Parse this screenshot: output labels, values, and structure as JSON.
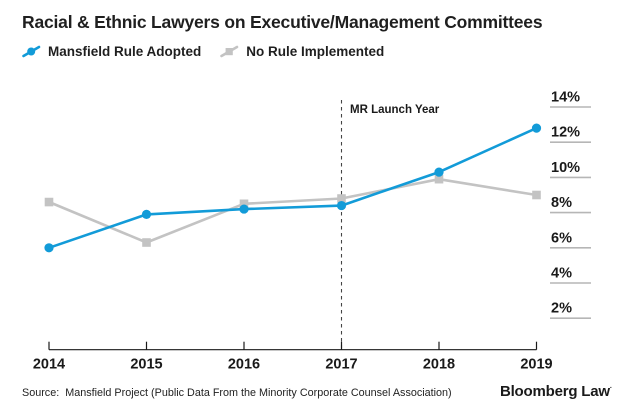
{
  "title": "Racial & Ethnic Lawyers on Executive/Management Committees",
  "source_note": "Source:  Mansfield Project (Public Data From the Minority Corporate Counsel Association)",
  "branding": {
    "logo_text": "Bloomberg Law",
    "trademark_mark": "·"
  },
  "colors": {
    "adopted_blue": "#129bd8",
    "no_rule_gray": "#c3c3c3",
    "axis_black": "#1a1a1a",
    "tick_rule_gray": "#b6b6b6",
    "dashed_line": "#444444"
  },
  "chart_data": {
    "type": "line",
    "title": "Racial & Ethnic Lawyers on Executive/Management Committees",
    "x": [
      "2014",
      "2015",
      "2016",
      "2017",
      "2018",
      "2019"
    ],
    "series": [
      {
        "name": "Mansfield Rule Adopted",
        "color": "#129bd8",
        "marker": "circle",
        "values": [
          6.0,
          7.9,
          8.2,
          8.4,
          10.3,
          12.8
        ]
      },
      {
        "name": "No Rule Implemented",
        "color": "#c3c3c3",
        "marker": "square",
        "values": [
          8.6,
          6.3,
          8.5,
          8.8,
          9.9,
          9.0
        ]
      }
    ],
    "y_ticks": [
      "2%",
      "4%",
      "6%",
      "8%",
      "10%",
      "12%",
      "14%"
    ],
    "y_tick_values": [
      2,
      4,
      6,
      8,
      10,
      12,
      14
    ],
    "ylim": [
      0.5,
      14.5
    ],
    "y_axis_side": "right",
    "grid": "tick-underline-segments",
    "legend_position": "top-left",
    "annotation": {
      "label": "MR Launch Year",
      "x": "2017",
      "style": "vertical-dashed-line"
    }
  }
}
